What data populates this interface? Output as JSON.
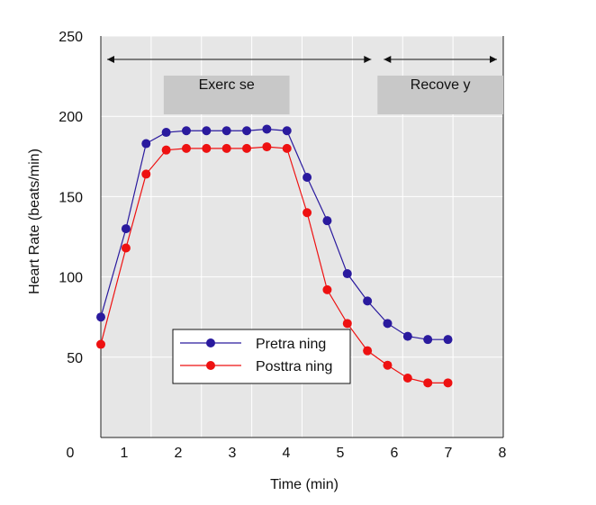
{
  "chart_data": {
    "type": "line",
    "xlabel": "Time (min)",
    "ylabel": "Heart Rate (beats/min)",
    "xlim": [
      0,
      8
    ],
    "ylim": [
      0,
      250
    ],
    "x_ticks": [
      "0",
      "1",
      "2",
      "3",
      "4",
      "5",
      "6",
      "7",
      "8"
    ],
    "y_ticks": [
      {
        "value": 50,
        "label": "50"
      },
      {
        "value": 100,
        "label": "100"
      },
      {
        "value": 150,
        "label": "150"
      },
      {
        "value": 200,
        "label": "200"
      },
      {
        "value": 250,
        "label": "250"
      }
    ],
    "grid": true,
    "plot_background": "#e6e6e6",
    "phases": [
      {
        "label": "Exerc se",
        "x_start": 0,
        "x_end": 5.5,
        "box_start": 1.25,
        "box_end": 3.75
      },
      {
        "label": "Recove y",
        "x_start": 5.5,
        "x_end": 8.0,
        "box_start": 5.5,
        "box_end": 8.0
      }
    ],
    "legend": {
      "position": "lower-center"
    },
    "series": [
      {
        "name": "Pretra ning",
        "color": "#2a1a9e",
        "x": [
          0.0,
          0.5,
          0.9,
          1.3,
          1.7,
          2.1,
          2.5,
          2.9,
          3.3,
          3.7,
          4.1,
          4.5,
          4.9,
          5.3,
          5.7,
          6.1,
          6.5,
          6.9
        ],
        "y": [
          75,
          130,
          183,
          190,
          191,
          191,
          191,
          191,
          192,
          191,
          162,
          135,
          102,
          85,
          71,
          63,
          61,
          61
        ]
      },
      {
        "name": "Posttra ning",
        "color": "#ee1111",
        "x": [
          0.0,
          0.5,
          0.9,
          1.3,
          1.7,
          2.1,
          2.5,
          2.9,
          3.3,
          3.7,
          4.1,
          4.5,
          4.9,
          5.3,
          5.7,
          6.1,
          6.5,
          6.9
        ],
        "y": [
          58,
          118,
          164,
          179,
          180,
          180,
          180,
          180,
          181,
          180,
          140,
          92,
          71,
          54,
          45,
          37,
          34,
          34
        ]
      }
    ]
  }
}
